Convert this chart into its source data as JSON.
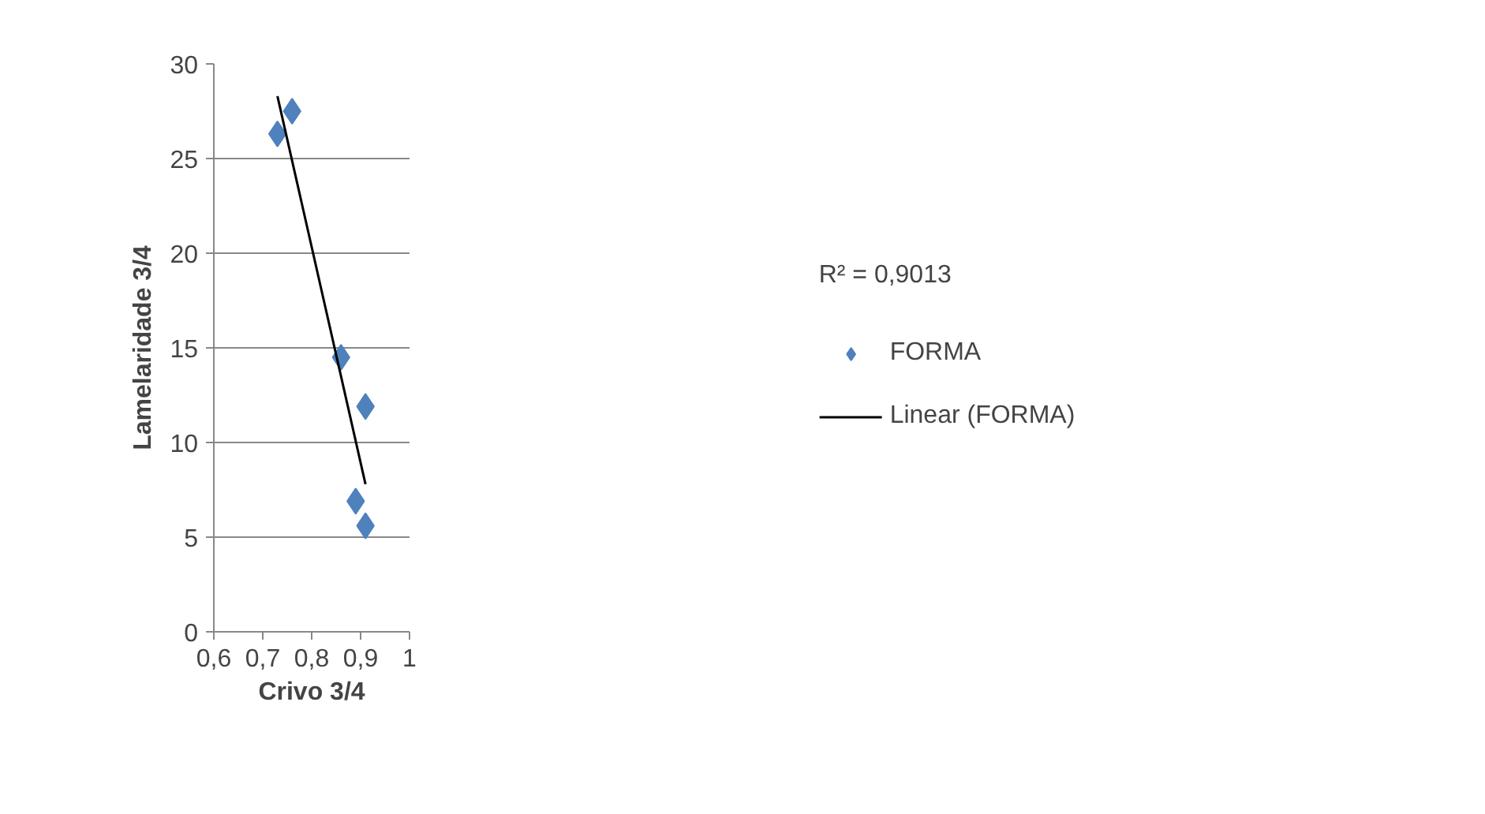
{
  "chart_data": {
    "type": "scatter",
    "xlabel": "Crivo 3/4",
    "ylabel": "Lamelaridade 3/4",
    "xlim": [
      0.6,
      1
    ],
    "xticks": [
      {
        "value": 0.6,
        "label": "0,6"
      },
      {
        "value": 0.7,
        "label": "0,7"
      },
      {
        "value": 0.8,
        "label": "0,8"
      },
      {
        "value": 0.9,
        "label": "0,9"
      },
      1
    ],
    "ylim": [
      0,
      30
    ],
    "yticks": [
      0,
      5,
      10,
      15,
      20,
      25,
      30
    ],
    "grid": "y",
    "legend": "right",
    "marker": "diamond",
    "series": [
      {
        "name": "FORMA",
        "color": "#4f81bd",
        "x": [
          0.73,
          0.76,
          0.86,
          0.91,
          0.89,
          0.91
        ],
        "values": [
          26.3,
          27.5,
          14.5,
          11.9,
          6.9,
          5.6
        ]
      },
      {
        "name": "Linear (FORMA)",
        "type": "line",
        "marker": "none",
        "color": "#000000",
        "x": [
          0.73,
          0.91
        ],
        "values": [
          28.3,
          7.8
        ]
      }
    ],
    "annotations": [
      "R² = 0,9013"
    ]
  }
}
